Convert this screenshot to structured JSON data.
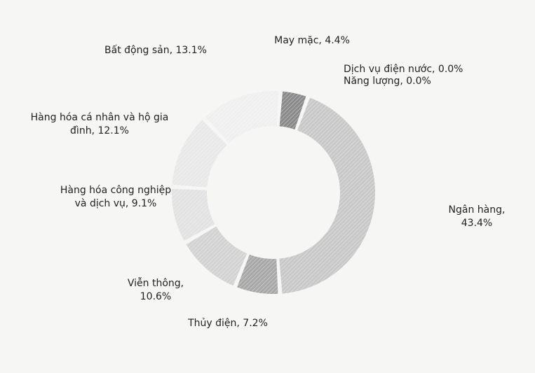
{
  "chart_data": {
    "type": "donut",
    "categories": [
      "May mặc",
      "Dịch vụ điện nước",
      "Năng lượng",
      "Ngân hàng",
      "Thủy điện",
      "Viễn thông",
      "Hàng hóa công nghiệp và dịch vụ",
      "Hàng hóa cá nhân và hộ gia đình",
      "Bất động sản"
    ],
    "values": [
      4.4,
      0.0,
      0.0,
      43.4,
      7.2,
      10.6,
      9.1,
      12.1,
      13.1
    ],
    "value_labels": [
      "May mặc, 4.4%",
      "Dịch vụ điện nước, 0.0%",
      "Năng lượng, 0.0%",
      "Ngân hàng, 43.4%",
      "Thủy điện, 7.2%",
      "Viễn thông, 10.6%",
      "Hàng hóa công nghiệp và dịch vụ, 9.1%",
      "Hàng hóa cá nhân và hộ gia đình, 12.1%",
      "Bất động sản, 13.1%"
    ],
    "colors": [
      "#8a8a8a",
      "#9a9a9a",
      "#a0a0a0",
      "#c8c8c8",
      "#a8a8a8",
      "#d2d2d2",
      "#e2e2e2",
      "#e8e8e8",
      "#efefef"
    ]
  }
}
